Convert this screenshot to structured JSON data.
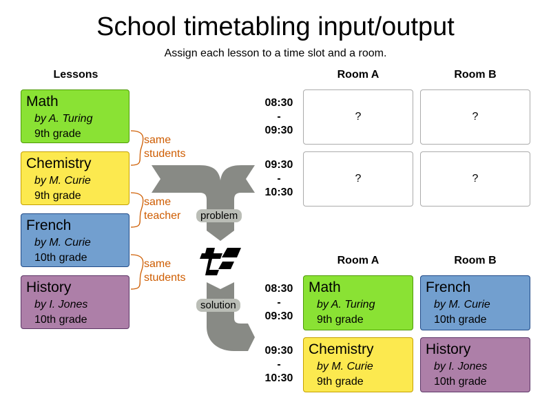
{
  "title": "School timetabling input/output",
  "subtitle": "Assign each lesson to a time slot and a room.",
  "lessons_header": "Lessons",
  "lessons": [
    {
      "subject": "Math",
      "teacher": "by  A. Turing",
      "grade": "9th grade",
      "color": "#8ae234"
    },
    {
      "subject": "Chemistry",
      "teacher": "by  M. Curie",
      "grade": "9th grade",
      "color": "#fce94f"
    },
    {
      "subject": "French",
      "teacher": "by  M. Curie",
      "grade": "10th grade",
      "color": "#729fcf"
    },
    {
      "subject": "History",
      "teacher": "by  I. Jones",
      "grade": "10th grade",
      "color": "#ad7fa8"
    }
  ],
  "constraints": [
    {
      "line1": "same",
      "line2": "students"
    },
    {
      "line1": "same",
      "line2": "teacher"
    },
    {
      "line1": "same",
      "line2": "students"
    }
  ],
  "rooms": [
    "Room A",
    "Room B"
  ],
  "timeslots": [
    {
      "start": "08:30",
      "sep": "-",
      "end": "09:30"
    },
    {
      "start": "09:30",
      "sep": "-",
      "end": "10:30"
    }
  ],
  "unknown": "?",
  "problem_label": "problem",
  "solution_label": "solution"
}
